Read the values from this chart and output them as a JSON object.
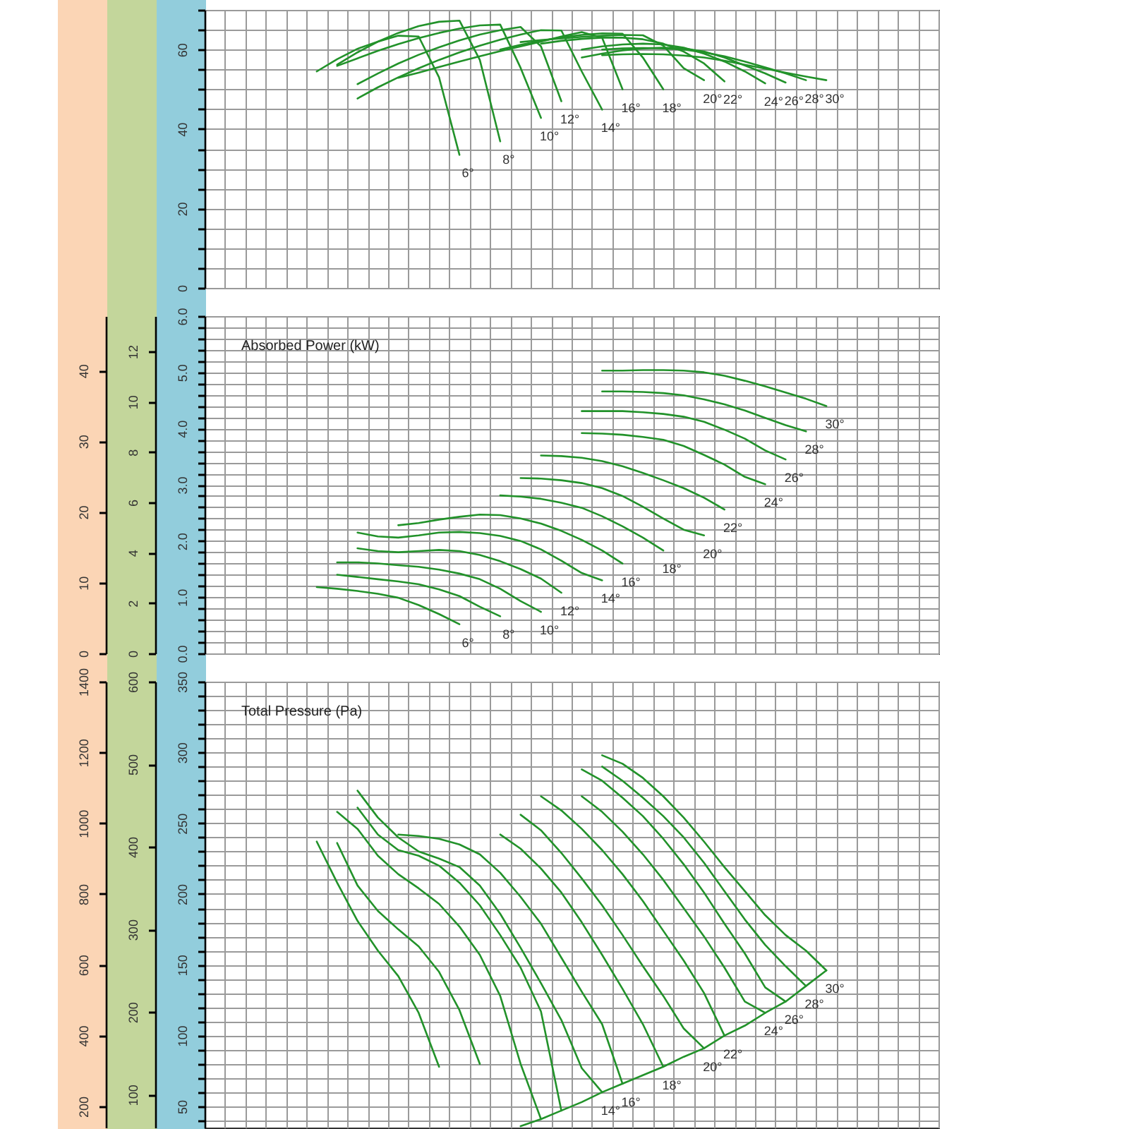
{
  "chart_data": [
    {
      "type": "line",
      "categories": [
        null,
        null,
        null,
        null,
        null,
        null,
        null,
        null,
        null,
        null,
        null,
        null,
        null,
        null,
        null,
        null,
        null,
        null,
        null,
        null,
        null,
        null,
        null,
        null,
        null,
        null,
        null,
        null,
        null,
        null,
        null,
        null,
        null,
        null,
        null,
        null
      ],
      "series": [
        {
          "name": "6°",
          "color": "#22922a",
          "values": [
            null,
            null,
            null,
            null,
            null,
            54.5,
            57.6,
            60.2,
            62.0,
            63.5,
            63.3,
            53.0,
            33.5,
            null,
            null,
            null,
            null,
            null,
            null,
            null,
            null,
            null,
            null,
            null,
            null,
            null,
            null,
            null,
            null,
            null,
            null,
            null,
            null,
            null,
            null,
            null
          ]
        },
        {
          "name": "8°",
          "color": "#22922a",
          "values": [
            null,
            null,
            null,
            null,
            null,
            null,
            56.2,
            59.3,
            62.0,
            64.2,
            65.9,
            67.0,
            67.3,
            57.4,
            36.9,
            null,
            null,
            null,
            null,
            null,
            null,
            null,
            null,
            null,
            null,
            null,
            null,
            null,
            null,
            null,
            null,
            null,
            null,
            null,
            null,
            null
          ]
        },
        {
          "name": "10°",
          "color": "#22922a",
          "values": [
            null,
            null,
            null,
            null,
            null,
            null,
            55.9,
            57.8,
            59.7,
            61.4,
            62.9,
            64.2,
            65.3,
            66.1,
            66.3,
            55.4,
            42.8,
            null,
            null,
            null,
            null,
            null,
            null,
            null,
            null,
            null,
            null,
            null,
            null,
            null,
            null,
            null,
            null,
            null,
            null,
            null
          ]
        },
        {
          "name": "12°",
          "color": "#22922a",
          "values": [
            null,
            null,
            null,
            null,
            null,
            null,
            null,
            51.3,
            54.0,
            56.5,
            58.7,
            60.6,
            62.3,
            63.8,
            64.9,
            65.7,
            60.8,
            47.0,
            null,
            null,
            null,
            null,
            null,
            null,
            null,
            null,
            null,
            null,
            null,
            null,
            null,
            null,
            null,
            null,
            null,
            null
          ]
        },
        {
          "name": "14°",
          "color": "#22922a",
          "values": [
            null,
            null,
            null,
            null,
            null,
            null,
            null,
            47.7,
            50.5,
            53.0,
            55.3,
            57.4,
            59.3,
            61.0,
            62.5,
            63.8,
            64.9,
            64.8,
            54.5,
            44.9,
            null,
            null,
            null,
            null,
            null,
            null,
            null,
            null,
            null,
            null,
            null,
            null,
            null,
            null,
            null,
            null
          ]
        },
        {
          "name": "16°",
          "color": "#22922a",
          "values": [
            null,
            null,
            null,
            null,
            null,
            null,
            null,
            null,
            null,
            52.9,
            54.2,
            55.6,
            57.0,
            58.3,
            59.6,
            60.8,
            62.0,
            63.3,
            64.4,
            63.0,
            50.0,
            null,
            null,
            null,
            null,
            null,
            null,
            null,
            null,
            null,
            null,
            null,
            null,
            null,
            null,
            null
          ]
        },
        {
          "name": "18°",
          "color": "#22922a",
          "values": [
            null,
            null,
            null,
            null,
            null,
            null,
            null,
            null,
            null,
            null,
            null,
            null,
            null,
            null,
            60.0,
            61.2,
            62.2,
            63.1,
            63.7,
            64.1,
            64.0,
            58.0,
            50.0,
            null,
            null,
            null,
            null,
            null,
            null,
            null,
            null,
            null,
            null,
            null,
            null,
            null
          ]
        },
        {
          "name": "20°",
          "color": "#22922a",
          "values": [
            null,
            null,
            null,
            null,
            null,
            null,
            null,
            null,
            null,
            null,
            null,
            null,
            null,
            null,
            null,
            61.9,
            62.4,
            62.8,
            63.2,
            63.5,
            63.7,
            63.6,
            61.0,
            55.3,
            52.3,
            null,
            null,
            null,
            null,
            null,
            null,
            null,
            null,
            null,
            null,
            null
          ]
        },
        {
          "name": "22°",
          "color": "#22922a",
          "values": [
            null,
            null,
            null,
            null,
            null,
            null,
            null,
            null,
            null,
            null,
            null,
            null,
            null,
            null,
            null,
            null,
            61.5,
            62.2,
            62.7,
            63.0,
            63.0,
            62.6,
            61.5,
            59.5,
            56.5,
            52.0,
            null,
            null,
            null,
            null,
            null,
            null,
            null,
            null,
            null,
            null
          ]
        },
        {
          "name": "24°",
          "color": "#22922a",
          "values": [
            null,
            null,
            null,
            null,
            null,
            null,
            null,
            null,
            null,
            null,
            null,
            null,
            null,
            null,
            null,
            null,
            null,
            null,
            60.0,
            60.8,
            61.3,
            61.5,
            61.3,
            60.5,
            59.0,
            57.0,
            54.5,
            51.5,
            null,
            null,
            null,
            null,
            null,
            null,
            null,
            null
          ]
        },
        {
          "name": "26°",
          "color": "#22922a",
          "values": [
            null,
            null,
            null,
            null,
            null,
            null,
            null,
            null,
            null,
            null,
            null,
            null,
            null,
            null,
            null,
            null,
            null,
            null,
            58.0,
            59.0,
            59.8,
            60.3,
            60.5,
            60.3,
            59.5,
            58.0,
            56.0,
            54.0,
            51.7,
            null,
            null,
            null,
            null,
            null,
            null,
            null
          ]
        },
        {
          "name": "28°",
          "color": "#22922a",
          "values": [
            null,
            null,
            null,
            null,
            null,
            null,
            null,
            null,
            null,
            null,
            null,
            null,
            null,
            null,
            null,
            null,
            null,
            null,
            null,
            60.0,
            60.3,
            60.4,
            60.3,
            60.0,
            59.3,
            58.3,
            57.0,
            55.5,
            54.0,
            52.3,
            null,
            null,
            null,
            null,
            null,
            null
          ]
        },
        {
          "name": "30°",
          "color": "#22922a",
          "values": [
            null,
            null,
            null,
            null,
            null,
            null,
            null,
            null,
            null,
            null,
            null,
            null,
            null,
            null,
            null,
            null,
            null,
            null,
            null,
            58.6,
            58.8,
            58.9,
            58.8,
            58.5,
            58.0,
            57.2,
            56.2,
            55.2,
            54.2,
            53.2,
            52.3,
            null,
            null,
            null,
            null,
            null
          ]
        }
      ],
      "ylim": [
        0,
        70
      ],
      "yticks": [
        0,
        {
          "value": 5,
          "label": null
        },
        {
          "value": 10,
          "label": null
        },
        {
          "value": 15,
          "label": null
        },
        20,
        {
          "value": 25,
          "label": null
        },
        {
          "value": 30,
          "label": null
        },
        {
          "value": 35,
          "label": null
        },
        40,
        {
          "value": 45,
          "label": null
        },
        {
          "value": 50,
          "label": null
        },
        {
          "value": 55,
          "label": null
        },
        60,
        {
          "value": 65,
          "label": null
        },
        {
          "value": 70,
          "label": null
        }
      ],
      "grid": true
    },
    {
      "type": "line",
      "title": "Absorbed Power (kW)",
      "categories": [
        null,
        null,
        null,
        null,
        null,
        null,
        null,
        null,
        null,
        null,
        null,
        null,
        null,
        null,
        null,
        null,
        null,
        null,
        null,
        null,
        null,
        null,
        null,
        null,
        null,
        null,
        null,
        null,
        null,
        null,
        null,
        null,
        null,
        null,
        null,
        null
      ],
      "series": [
        {
          "name": "6°",
          "color": "#22922a",
          "values": [
            null,
            null,
            null,
            null,
            null,
            1.18,
            1.15,
            1.11,
            1.06,
            0.99,
            0.86,
            0.7,
            0.52,
            null,
            null,
            null,
            null,
            null,
            null,
            null,
            null,
            null,
            null,
            null,
            null,
            null,
            null,
            null,
            null,
            null,
            null,
            null,
            null,
            null,
            null,
            null
          ]
        },
        {
          "name": "8°",
          "color": "#22922a",
          "values": [
            null,
            null,
            null,
            null,
            null,
            null,
            1.4,
            1.36,
            1.32,
            1.28,
            1.23,
            1.14,
            1.02,
            0.83,
            0.66,
            null,
            null,
            null,
            null,
            null,
            null,
            null,
            null,
            null,
            null,
            null,
            null,
            null,
            null,
            null,
            null,
            null,
            null,
            null,
            null,
            null
          ]
        },
        {
          "name": "10°",
          "color": "#22922a",
          "values": [
            null,
            null,
            null,
            null,
            null,
            null,
            1.62,
            1.62,
            1.6,
            1.57,
            1.54,
            1.49,
            1.42,
            1.32,
            1.15,
            0.93,
            0.74,
            null,
            null,
            null,
            null,
            null,
            null,
            null,
            null,
            null,
            null,
            null,
            null,
            null,
            null,
            null,
            null,
            null,
            null,
            null
          ]
        },
        {
          "name": "12°",
          "color": "#22922a",
          "values": [
            null,
            null,
            null,
            null,
            null,
            null,
            null,
            1.87,
            1.82,
            1.8,
            1.82,
            1.84,
            1.82,
            1.75,
            1.64,
            1.5,
            1.33,
            1.08,
            null,
            null,
            null,
            null,
            null,
            null,
            null,
            null,
            null,
            null,
            null,
            null,
            null,
            null,
            null,
            null,
            null,
            null
          ]
        },
        {
          "name": "14°",
          "color": "#22922a",
          "values": [
            null,
            null,
            null,
            null,
            null,
            null,
            null,
            2.15,
            2.08,
            2.06,
            2.1,
            2.15,
            2.16,
            2.14,
            2.09,
            2.0,
            1.85,
            1.65,
            1.43,
            1.3,
            null,
            null,
            null,
            null,
            null,
            null,
            null,
            null,
            null,
            null,
            null,
            null,
            null,
            null,
            null,
            null
          ]
        },
        {
          "name": "16°",
          "color": "#22922a",
          "values": [
            null,
            null,
            null,
            null,
            null,
            null,
            null,
            null,
            null,
            2.28,
            2.32,
            2.38,
            2.43,
            2.47,
            2.46,
            2.4,
            2.31,
            2.18,
            2.02,
            1.83,
            1.6,
            null,
            null,
            null,
            null,
            null,
            null,
            null,
            null,
            null,
            null,
            null,
            null,
            null,
            null,
            null
          ]
        },
        {
          "name": "18°",
          "color": "#22922a",
          "values": [
            null,
            null,
            null,
            null,
            null,
            null,
            null,
            null,
            null,
            null,
            null,
            null,
            null,
            null,
            2.81,
            2.79,
            2.75,
            2.68,
            2.59,
            2.44,
            2.26,
            2.06,
            1.83,
            null,
            null,
            null,
            null,
            null,
            null,
            null,
            null,
            null,
            null,
            null,
            null,
            null
          ]
        },
        {
          "name": "20°",
          "color": "#22922a",
          "values": [
            null,
            null,
            null,
            null,
            null,
            null,
            null,
            null,
            null,
            null,
            null,
            null,
            null,
            null,
            null,
            3.12,
            3.11,
            3.08,
            3.03,
            2.94,
            2.8,
            2.61,
            2.4,
            2.2,
            2.1,
            null,
            null,
            null,
            null,
            null,
            null,
            null,
            null,
            null,
            null,
            null
          ]
        },
        {
          "name": "22°",
          "color": "#22922a",
          "values": [
            null,
            null,
            null,
            null,
            null,
            null,
            null,
            null,
            null,
            null,
            null,
            null,
            null,
            null,
            null,
            null,
            3.52,
            3.51,
            3.48,
            3.42,
            3.33,
            3.21,
            3.08,
            2.94,
            2.77,
            2.56,
            null,
            null,
            null,
            null,
            null,
            null,
            null,
            null,
            null,
            null
          ]
        },
        {
          "name": "24°",
          "color": "#22922a",
          "values": [
            null,
            null,
            null,
            null,
            null,
            null,
            null,
            null,
            null,
            null,
            null,
            null,
            null,
            null,
            null,
            null,
            null,
            null,
            3.92,
            3.91,
            3.89,
            3.85,
            3.8,
            3.69,
            3.53,
            3.36,
            3.14,
            3.01,
            null,
            null,
            null,
            null,
            null,
            null,
            null,
            null
          ]
        },
        {
          "name": "26°",
          "color": "#22922a",
          "values": [
            null,
            null,
            null,
            null,
            null,
            null,
            null,
            null,
            null,
            null,
            null,
            null,
            null,
            null,
            null,
            null,
            null,
            null,
            4.31,
            4.31,
            4.31,
            4.29,
            4.26,
            4.21,
            4.12,
            3.98,
            3.82,
            3.61,
            3.45,
            null,
            null,
            null,
            null,
            null,
            null,
            null
          ]
        },
        {
          "name": "28°",
          "color": "#22922a",
          "values": [
            null,
            null,
            null,
            null,
            null,
            null,
            null,
            null,
            null,
            null,
            null,
            null,
            null,
            null,
            null,
            null,
            null,
            null,
            null,
            4.66,
            4.66,
            4.65,
            4.63,
            4.59,
            4.52,
            4.43,
            4.32,
            4.19,
            4.06,
            3.95,
            null,
            null,
            null,
            null,
            null,
            null
          ]
        },
        {
          "name": "30°",
          "color": "#22922a",
          "values": [
            null,
            null,
            null,
            null,
            null,
            null,
            null,
            null,
            null,
            null,
            null,
            null,
            null,
            null,
            null,
            null,
            null,
            null,
            null,
            5.03,
            5.03,
            5.04,
            5.04,
            5.03,
            5.0,
            4.94,
            4.85,
            4.75,
            4.64,
            4.53,
            4.4,
            null,
            null,
            null,
            null,
            null
          ]
        }
      ],
      "ylim": [
        0,
        6
      ],
      "yticks": [
        {
          "value": 0,
          "label": "0.0"
        },
        {
          "value": 0.2,
          "label": null
        },
        {
          "value": 0.4,
          "label": null
        },
        {
          "value": 0.6,
          "label": null
        },
        {
          "value": 0.8,
          "label": null
        },
        {
          "value": 1,
          "label": "1.0"
        },
        {
          "value": 1.2,
          "label": null
        },
        {
          "value": 1.4,
          "label": null
        },
        {
          "value": 1.6,
          "label": null
        },
        {
          "value": 1.8,
          "label": null
        },
        {
          "value": 2,
          "label": "2.0"
        },
        {
          "value": 2.2,
          "label": null
        },
        {
          "value": 2.4,
          "label": null
        },
        {
          "value": 2.6,
          "label": null
        },
        {
          "value": 2.8,
          "label": null
        },
        {
          "value": 3,
          "label": "3.0"
        },
        {
          "value": 3.2,
          "label": null
        },
        {
          "value": 3.4,
          "label": null
        },
        {
          "value": 3.6,
          "label": null
        },
        {
          "value": 3.8,
          "label": null
        },
        {
          "value": 4,
          "label": "4.0"
        },
        {
          "value": 4.2,
          "label": null
        },
        {
          "value": 4.4,
          "label": null
        },
        {
          "value": 4.6,
          "label": null
        },
        {
          "value": 4.8,
          "label": null
        },
        {
          "value": 5,
          "label": "5.0"
        },
        {
          "value": 5.2,
          "label": null
        },
        {
          "value": 5.4,
          "label": null
        },
        {
          "value": 5.6,
          "label": null
        },
        {
          "value": 5.8,
          "label": null
        },
        {
          "value": 6,
          "label": "6.0"
        }
      ],
      "y2lim": [
        0,
        13.4
      ],
      "y2ticks": [
        0,
        2,
        4,
        6,
        8,
        10,
        12
      ],
      "y3lim": [
        0,
        47.7
      ],
      "y3ticks": [
        0,
        10,
        20,
        30,
        40
      ],
      "grid": true
    },
    {
      "type": "line",
      "title": "Total Pressure (Pa)",
      "categories": [
        null,
        null,
        null,
        null,
        null,
        null,
        null,
        null,
        null,
        null,
        null,
        null,
        null,
        null,
        null,
        null,
        null,
        null,
        null,
        null,
        null,
        null,
        null,
        null,
        null,
        null,
        null,
        null,
        null,
        null,
        null,
        null,
        null,
        null,
        null,
        null
      ],
      "series": [
        {
          "color": "#22922a",
          "values": [
            null,
            null,
            null,
            null,
            null,
            237,
            208,
            181,
            160,
            142,
            116,
            78,
            null,
            null,
            null,
            null,
            null,
            null,
            null,
            null,
            null,
            null,
            null,
            null,
            null,
            null,
            null,
            null,
            null,
            null,
            null,
            null,
            null,
            null,
            null,
            null
          ]
        },
        {
          "color": "#22922a",
          "values": [
            null,
            null,
            null,
            null,
            null,
            null,
            236,
            206,
            188,
            175,
            163,
            145,
            118,
            80,
            null,
            null,
            null,
            null,
            null,
            null,
            null,
            null,
            null,
            null,
            null,
            null,
            null,
            null,
            null,
            null,
            null,
            null,
            null,
            null,
            null,
            null
          ]
        },
        {
          "color": "#22922a",
          "values": [
            null,
            null,
            null,
            null,
            null,
            null,
            258,
            246,
            227,
            214,
            204,
            193,
            177,
            157,
            128,
            80,
            41,
            null,
            null,
            null,
            null,
            null,
            null,
            null,
            null,
            null,
            null,
            null,
            null,
            null,
            null,
            null,
            null,
            null,
            null,
            null
          ]
        },
        {
          "color": "#22922a",
          "values": [
            null,
            null,
            null,
            null,
            null,
            null,
            null,
            261,
            242,
            231,
            227,
            220,
            208,
            192,
            171,
            148,
            117,
            47,
            null,
            null,
            null,
            null,
            null,
            null,
            null,
            null,
            null,
            null,
            null,
            null,
            null,
            null,
            null,
            null,
            null,
            null
          ]
        },
        {
          "name": "14°",
          "color": "#22922a",
          "values": [
            null,
            null,
            null,
            null,
            null,
            null,
            null,
            273,
            254,
            240,
            230,
            225,
            219,
            206,
            186,
            162,
            137,
            111,
            77,
            60,
            null,
            null,
            null,
            null,
            null,
            null,
            null,
            null,
            null,
            null,
            null,
            null,
            null,
            null,
            null,
            null
          ]
        },
        {
          "name": "16°",
          "color": "#22922a",
          "values": [
            null,
            null,
            null,
            null,
            null,
            null,
            null,
            null,
            null,
            242,
            241,
            239,
            235,
            228,
            215,
            198,
            179,
            155,
            131,
            108,
            66,
            null,
            null,
            null,
            null,
            null,
            null,
            null,
            null,
            null,
            null,
            null,
            null,
            null,
            null,
            null
          ]
        },
        {
          "name": "18°",
          "color": "#22922a",
          "values": [
            null,
            null,
            null,
            null,
            null,
            null,
            null,
            null,
            null,
            null,
            null,
            null,
            null,
            null,
            242,
            232,
            218,
            201,
            180,
            157,
            133,
            108,
            78,
            null,
            null,
            null,
            null,
            null,
            null,
            null,
            null,
            null,
            null,
            null,
            null,
            null
          ]
        },
        {
          "name": "20°",
          "color": "#22922a",
          "values": [
            null,
            null,
            null,
            null,
            null,
            null,
            null,
            null,
            null,
            null,
            null,
            null,
            null,
            null,
            null,
            256,
            245,
            229,
            211,
            192,
            171,
            149,
            128,
            105,
            91,
            null,
            null,
            null,
            null,
            null,
            null,
            null,
            null,
            null,
            null,
            null
          ]
        },
        {
          "name": "22°",
          "color": "#22922a",
          "values": [
            null,
            null,
            null,
            null,
            null,
            null,
            null,
            null,
            null,
            null,
            null,
            null,
            null,
            null,
            null,
            null,
            269,
            259,
            246,
            231,
            214,
            195,
            174,
            153,
            130,
            100,
            null,
            null,
            null,
            null,
            null,
            null,
            null,
            null,
            null,
            null
          ]
        },
        {
          "name": "24°",
          "color": "#22922a",
          "values": [
            null,
            null,
            null,
            null,
            null,
            null,
            null,
            null,
            null,
            null,
            null,
            null,
            null,
            null,
            null,
            null,
            null,
            null,
            269,
            258,
            244,
            228,
            210,
            190,
            170,
            148,
            124,
            116,
            null,
            null,
            null,
            null,
            null,
            null,
            null,
            null
          ]
        },
        {
          "name": "26°",
          "color": "#22922a",
          "values": [
            null,
            null,
            null,
            null,
            null,
            null,
            null,
            null,
            null,
            null,
            null,
            null,
            null,
            null,
            null,
            null,
            null,
            null,
            288,
            280,
            268,
            255,
            239,
            221,
            201,
            179,
            158,
            134,
            124,
            null,
            null,
            null,
            null,
            null,
            null,
            null
          ]
        },
        {
          "name": "28°",
          "color": "#22922a",
          "values": [
            null,
            null,
            null,
            null,
            null,
            null,
            null,
            null,
            null,
            null,
            null,
            null,
            null,
            null,
            null,
            null,
            null,
            null,
            null,
            290,
            280,
            268,
            255,
            240,
            222,
            202,
            182,
            164,
            149,
            135,
            null,
            null,
            null,
            null,
            null,
            null
          ]
        },
        {
          "name": "30°",
          "color": "#22922a",
          "values": [
            null,
            null,
            null,
            null,
            null,
            null,
            null,
            null,
            null,
            null,
            null,
            null,
            null,
            null,
            null,
            null,
            null,
            null,
            null,
            298,
            292,
            282,
            269,
            254,
            237,
            219,
            202,
            185,
            171,
            160,
            146,
            null,
            null,
            null,
            null,
            null
          ]
        },
        {
          "color": "#22922a",
          "values": [
            null,
            null,
            null,
            null,
            null,
            null,
            null,
            null,
            null,
            null,
            null,
            null,
            null,
            null,
            null,
            36,
            41,
            47,
            53,
            60,
            66,
            72,
            78,
            85,
            91,
            100,
            107,
            116,
            124,
            135,
            146,
            null,
            null,
            null,
            null,
            null
          ]
        }
      ],
      "ylim": [
        35,
        350
      ],
      "yticks": [
        {
          "value": 40,
          "label": null
        },
        50,
        {
          "value": 60,
          "label": null
        },
        {
          "value": 70,
          "label": null
        },
        {
          "value": 80,
          "label": null
        },
        {
          "value": 90,
          "label": null
        },
        100,
        {
          "value": 110,
          "label": null
        },
        {
          "value": 120,
          "label": null
        },
        {
          "value": 130,
          "label": null
        },
        {
          "value": 140,
          "label": null
        },
        150,
        {
          "value": 160,
          "label": null
        },
        {
          "value": 170,
          "label": null
        },
        {
          "value": 180,
          "label": null
        },
        {
          "value": 190,
          "label": null
        },
        200,
        {
          "value": 210,
          "label": null
        },
        {
          "value": 220,
          "label": null
        },
        {
          "value": 230,
          "label": null
        },
        {
          "value": 240,
          "label": null
        },
        250,
        {
          "value": 260,
          "label": null
        },
        {
          "value": 270,
          "label": null
        },
        {
          "value": 280,
          "label": null
        },
        {
          "value": 290,
          "label": null
        },
        300,
        {
          "value": 310,
          "label": null
        },
        {
          "value": 320,
          "label": null
        },
        {
          "value": 330,
          "label": null
        },
        {
          "value": 340,
          "label": null
        },
        350
      ],
      "y2lim": [
        60,
        600
      ],
      "y2ticks": [
        100,
        200,
        300,
        400,
        500,
        600
      ],
      "y3lim": [
        140,
        1400
      ],
      "y3ticks": [
        200,
        400,
        600,
        800,
        1000,
        1200,
        1400
      ],
      "grid": true
    }
  ]
}
